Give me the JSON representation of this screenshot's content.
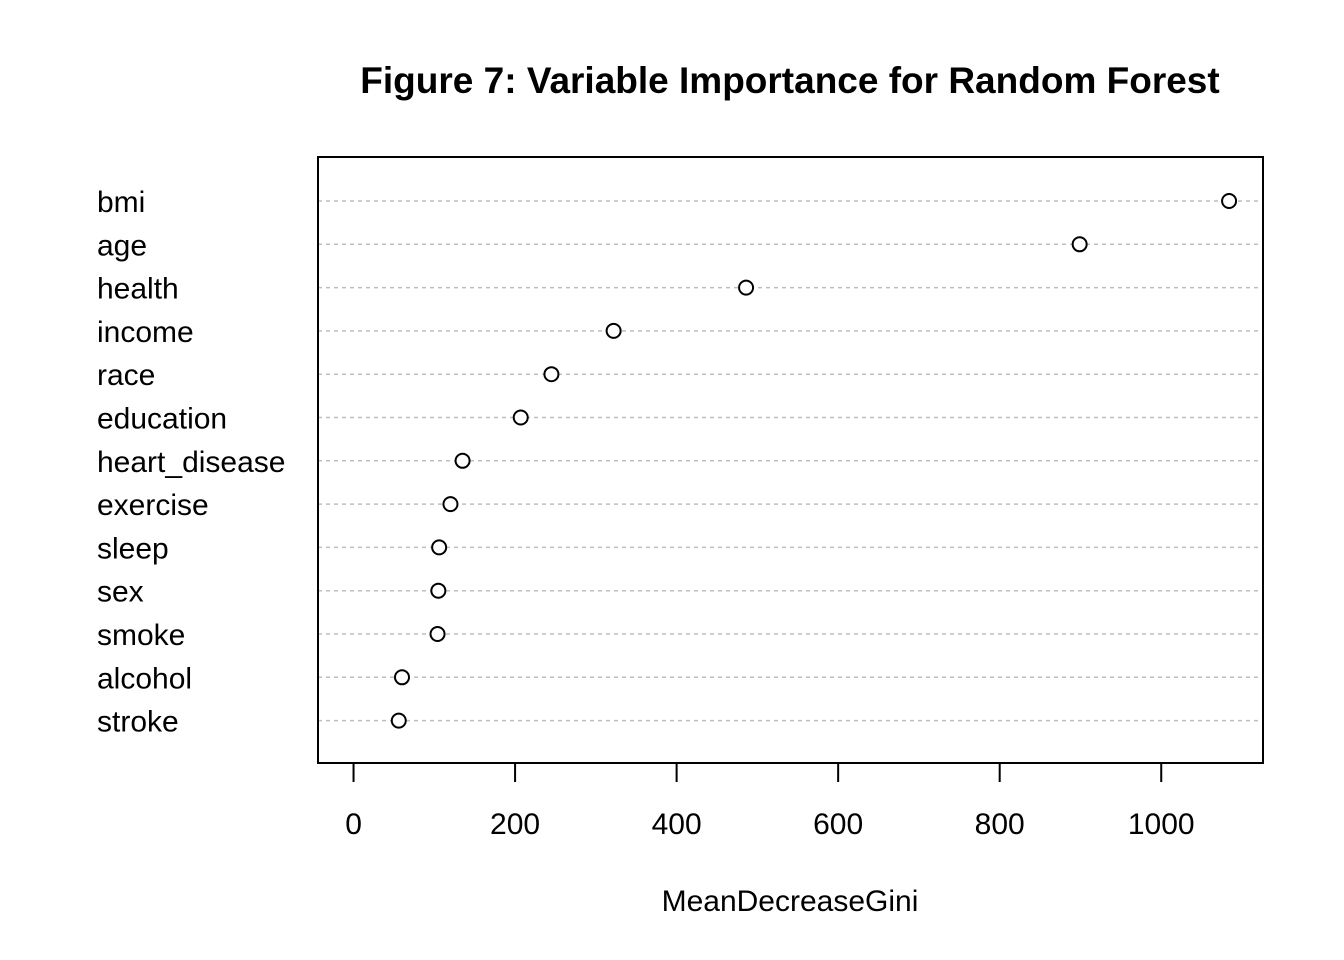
{
  "chart_data": {
    "type": "scatter",
    "title": "Figure 7: Variable Importance for Random Forest",
    "xlabel": "MeanDecreaseGini",
    "ylabel": "",
    "xlim": [
      -44,
      1126
    ],
    "xticks": [
      0,
      200,
      400,
      600,
      800,
      1000
    ],
    "categories": [
      "bmi",
      "age",
      "health",
      "income",
      "race",
      "education",
      "heart_disease",
      "exercise",
      "sleep",
      "sex",
      "smoke",
      "alcohol",
      "stroke"
    ],
    "values": [
      1084,
      899,
      486,
      322,
      245,
      207,
      135,
      120,
      106,
      105,
      104,
      60,
      56
    ],
    "grid": "horizontal dotted per category",
    "legend": "none",
    "colors": {
      "point_stroke": "#000000",
      "grid": "#bebebe",
      "frame": "#000000"
    }
  }
}
